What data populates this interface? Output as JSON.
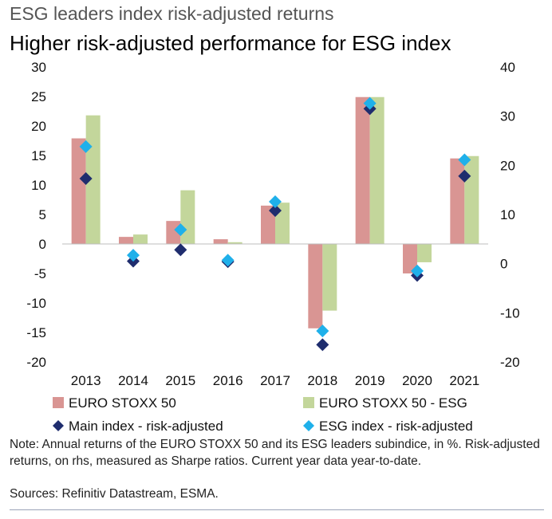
{
  "header": {
    "title": "ESG leaders index risk-adjusted returns",
    "subtitle": "Higher risk-adjusted performance for ESG index"
  },
  "chart_data": {
    "type": "bar",
    "categories": [
      "2013",
      "2014",
      "2015",
      "2016",
      "2017",
      "2018",
      "2019",
      "2020",
      "2021"
    ],
    "left_axis": {
      "ticks": [
        "30",
        "25",
        "20",
        "15",
        "10",
        "5",
        "0",
        "-5",
        "-10",
        "-15",
        "-20"
      ],
      "ylim": [
        -20,
        30
      ]
    },
    "right_axis": {
      "ticks": [
        "40",
        "30",
        "20",
        "10",
        "0",
        "-10",
        "-20"
      ],
      "ylim": [
        -20,
        40
      ]
    },
    "series": [
      {
        "name": "EURO STOXX 50",
        "kind": "bar",
        "axis": "left",
        "color": "#d99593",
        "values": [
          17.9,
          1.2,
          3.9,
          0.8,
          6.5,
          -14.3,
          24.9,
          -5.0,
          14.5
        ]
      },
      {
        "name": "EURO STOXX 50 - ESG",
        "kind": "bar",
        "axis": "left",
        "color": "#c3d69b",
        "values": [
          21.8,
          1.6,
          9.1,
          0.3,
          7.0,
          -11.3,
          24.9,
          -3.1,
          14.9
        ]
      },
      {
        "name": "Main index - risk-adjusted",
        "kind": "marker",
        "marker": "diamond",
        "axis": "right",
        "color": "#1f2d6e",
        "values": [
          17.3,
          0.5,
          2.8,
          0.4,
          10.8,
          -16.5,
          31.5,
          -2.4,
          17.8
        ]
      },
      {
        "name": "ESG index - risk-adjusted",
        "kind": "marker",
        "marker": "diamond",
        "axis": "right",
        "color": "#1fb0ea",
        "values": [
          23.8,
          1.7,
          6.9,
          0.7,
          12.6,
          -13.7,
          32.6,
          -1.5,
          21.1
        ]
      }
    ],
    "legend_position": "bottom",
    "grid": false
  },
  "footer": {
    "note": "Note: Annual returns of the EURO STOXX 50 and its ESG leaders subindice, in %. Risk-adjusted returns, on rhs, measured as Sharpe ratios. Current year data year-to-date.",
    "source": "Sources: Refinitiv Datastream, ESMA."
  }
}
